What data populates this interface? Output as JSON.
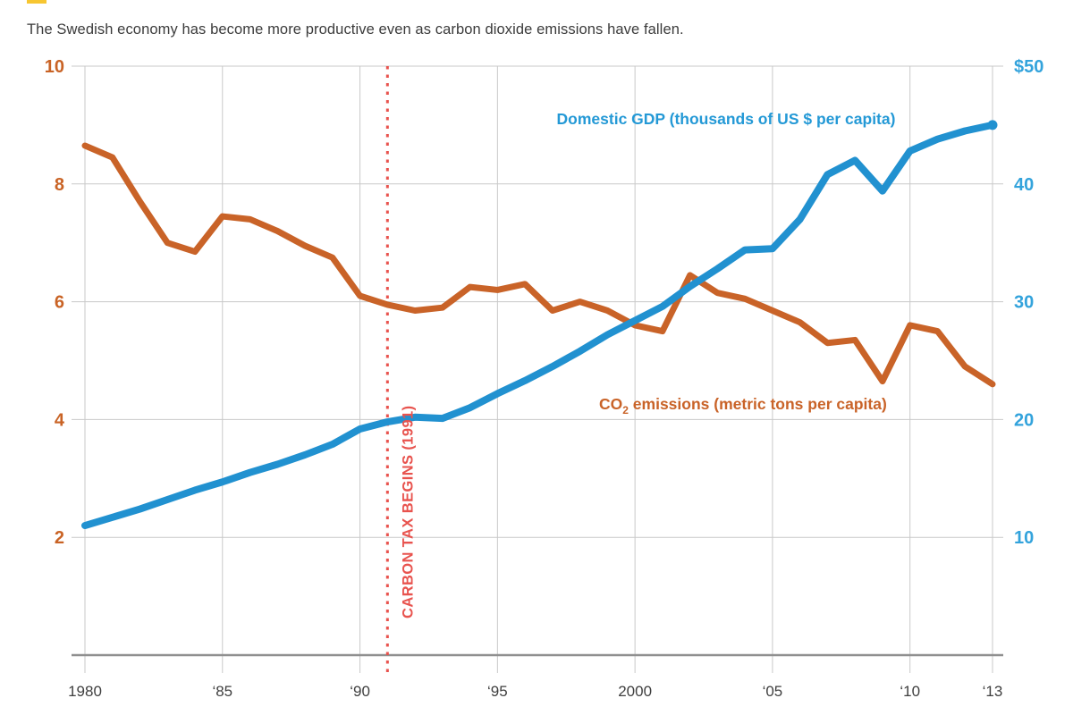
{
  "page": {
    "title": "The Swedish economy has become more productive even as carbon dioxide emissions have fallen.",
    "accent_bar_color": "#f7c631"
  },
  "chart_data": {
    "type": "line",
    "title": "The Swedish economy has become more productive even as carbon dioxide emissions have fallen.",
    "x": [
      1980,
      1981,
      1982,
      1983,
      1984,
      1985,
      1986,
      1987,
      1988,
      1989,
      1990,
      1991,
      1992,
      1993,
      1994,
      1995,
      1996,
      1997,
      1998,
      1999,
      2000,
      2001,
      2002,
      2003,
      2004,
      2005,
      2006,
      2007,
      2008,
      2009,
      2010,
      2011,
      2012,
      2013
    ],
    "x_tick_years": [
      1980,
      1985,
      1990,
      1995,
      2000,
      2005,
      2010,
      2013
    ],
    "x_tick_labels": [
      "1980",
      "‘85",
      "‘90",
      "‘95",
      "2000",
      "‘05",
      "‘10",
      "‘13"
    ],
    "series": [
      {
        "name": "CO2 emissions (metric tons per capita)",
        "axis": "left",
        "color": "#c96328",
        "values": [
          8.65,
          8.45,
          7.7,
          7.0,
          6.85,
          7.45,
          7.4,
          7.2,
          6.95,
          6.75,
          6.1,
          5.95,
          5.85,
          5.9,
          6.25,
          6.2,
          6.3,
          5.85,
          6.0,
          5.85,
          5.6,
          5.5,
          6.45,
          6.15,
          6.05,
          5.85,
          5.65,
          5.3,
          5.35,
          4.65,
          5.6,
          5.5,
          4.9,
          4.6
        ]
      },
      {
        "name": "Domestic GDP (thousands of US $ per capita)",
        "axis": "right",
        "color": "#2191d0",
        "values": [
          11.0,
          11.7,
          12.4,
          13.2,
          14.0,
          14.7,
          15.5,
          16.2,
          17.0,
          17.9,
          19.2,
          19.8,
          20.2,
          20.1,
          21.0,
          22.2,
          23.3,
          24.5,
          25.8,
          27.2,
          28.4,
          29.6,
          31.3,
          32.8,
          34.4,
          34.5,
          37.0,
          40.8,
          42.0,
          39.4,
          42.8,
          43.8,
          44.5,
          45.0
        ]
      }
    ],
    "left_axis": {
      "range": [
        0,
        10
      ],
      "ticks": [
        2,
        4,
        6,
        8,
        10
      ],
      "tick_labels": [
        "2",
        "4",
        "6",
        "8",
        "10"
      ],
      "color": "#c96325"
    },
    "right_axis": {
      "range": [
        0,
        50
      ],
      "ticks": [
        10,
        20,
        30,
        40,
        50
      ],
      "tick_labels": [
        "10",
        "20",
        "30",
        "40",
        "$50"
      ],
      "color": "#33a3dc"
    },
    "grid": true,
    "legend_position": "inline-labels",
    "annotation": {
      "label": "CARBON TAX BEGINS (1991)",
      "year": 1991,
      "color": "#e8534e"
    },
    "labels": {
      "gdp_label": "Domestic GDP (thousands of US $ per capita)",
      "gdp_label_color": "#2499d6",
      "co2_prefix": "CO",
      "co2_sub": "2",
      "co2_suffix": " emissions (metric tons per capita)",
      "co2_label_color": "#c96328"
    }
  }
}
